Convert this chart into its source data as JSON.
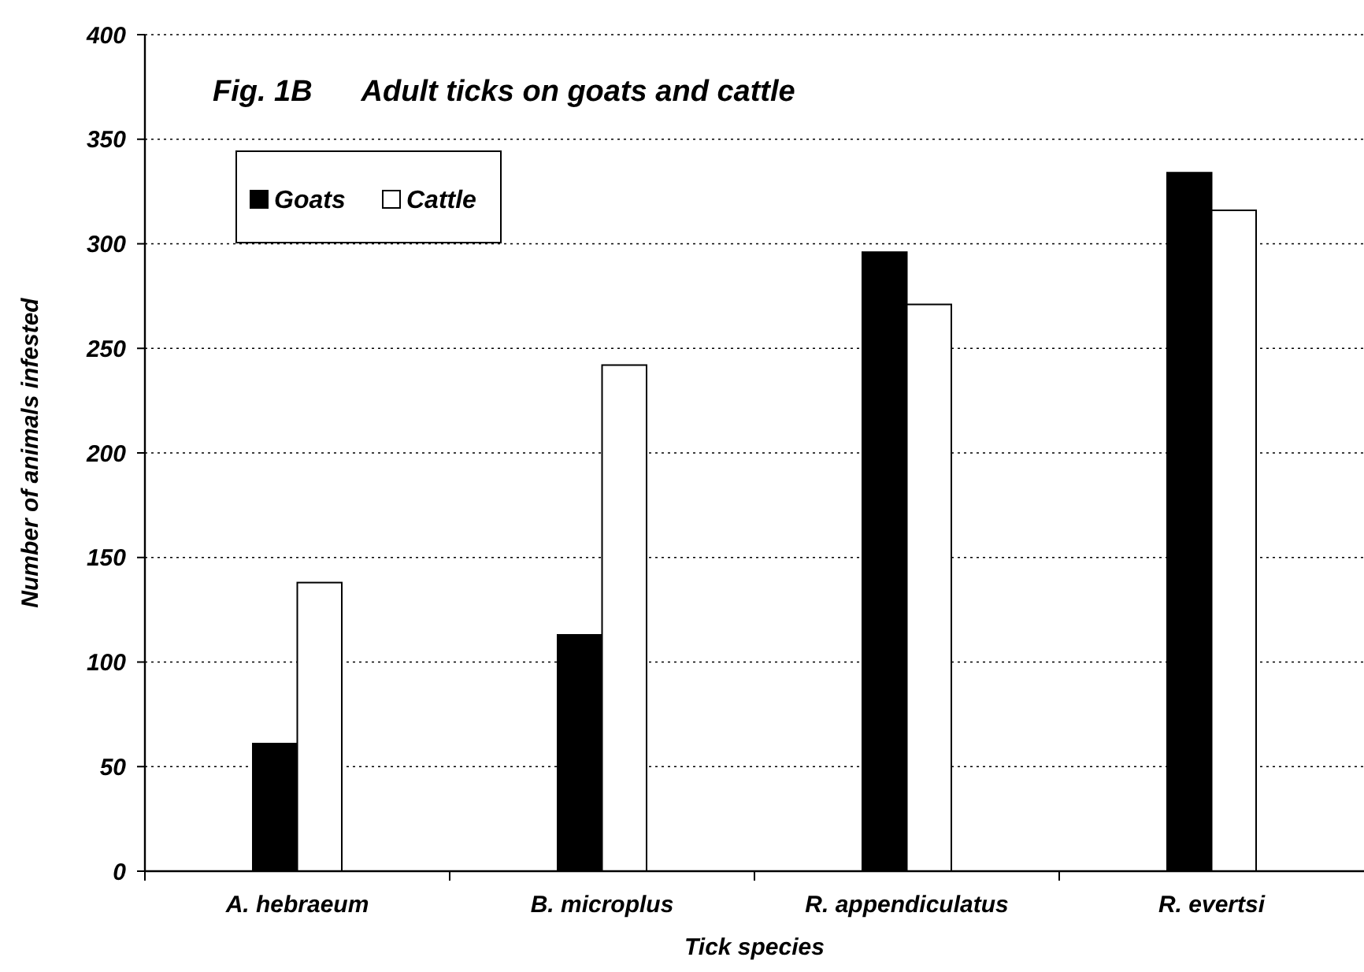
{
  "chart_data": {
    "type": "bar",
    "title": "Fig. 1B      Adult ticks on goats and cattle",
    "xlabel": "Tick species",
    "ylabel": "Number of animals infested",
    "categories": [
      "A. hebraeum",
      "B. microplus",
      "R. appendiculatus",
      "R. evertsi"
    ],
    "series": [
      {
        "name": "Goats",
        "color": "#000000",
        "values": [
          61,
          113,
          296,
          334
        ]
      },
      {
        "name": "Cattle",
        "color": "#ffffff",
        "values": [
          138,
          242,
          271,
          316
        ]
      }
    ],
    "ylim": [
      0,
      400
    ],
    "yticks": [
      0,
      50,
      100,
      150,
      200,
      250,
      300,
      350,
      400
    ],
    "grid": "y",
    "legend": "top left"
  }
}
